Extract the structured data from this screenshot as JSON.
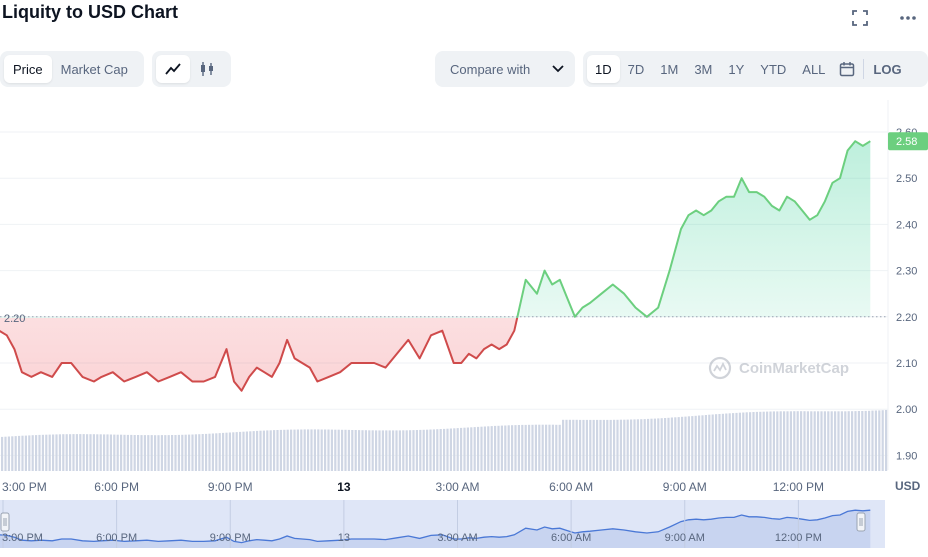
{
  "header": {
    "title": "Liquity to USD Chart"
  },
  "toolbar": {
    "view_tabs": [
      "Price",
      "Market Cap"
    ],
    "active_view": "Price",
    "chart_type_icons": [
      "line-chart-icon",
      "candlestick-icon"
    ],
    "compare_label": "Compare with",
    "ranges": [
      "1D",
      "7D",
      "1M",
      "3M",
      "1Y",
      "YTD",
      "ALL"
    ],
    "active_range": "1D",
    "log_label": "LOG"
  },
  "chart_data": {
    "type": "line",
    "title": "",
    "xlabel": "",
    "ylabel": "USD",
    "ylim": [
      1.86,
      2.605
    ],
    "baseline_label": "2.20",
    "baseline": 2.2,
    "current_label": "2.58",
    "watermark": "CoinMarketCap",
    "y_ticks": [
      "1.90",
      "2.00",
      "2.10",
      "2.20",
      "2.30",
      "2.40",
      "2.50",
      "2.60"
    ],
    "x_ticks": [
      "3:00 PM",
      "6:00 PM",
      "9:00 PM",
      "13",
      "3:00 AM",
      "6:00 AM",
      "9:00 AM",
      "12:00 PM"
    ],
    "x_tick_hours": [
      0,
      3,
      6,
      9,
      12,
      15,
      18,
      21
    ],
    "grid": true,
    "colors": {
      "up": "#16c784",
      "up_line": "#6ccf7f",
      "down": "#ea3943",
      "down_line": "#cf4b4b",
      "volume": "#cfd6e4",
      "navigator": "#dfe6f7"
    },
    "series": [
      {
        "x": [
          -0.1,
          0.1,
          0.3,
          0.5,
          0.75,
          1.0,
          1.3,
          1.55,
          1.8,
          2.1,
          2.4,
          2.6,
          2.9,
          3.2,
          3.5,
          3.8,
          4.1,
          4.4,
          4.7,
          5.0,
          5.3,
          5.6,
          5.9,
          6.1,
          6.3,
          6.5,
          6.7,
          6.9,
          7.1,
          7.3,
          7.5,
          7.7,
          7.9,
          8.1,
          8.3,
          8.6,
          8.9,
          9.2,
          9.5,
          9.8,
          10.1,
          10.4,
          10.7,
          11.0,
          11.3,
          11.6,
          11.9,
          12.1,
          12.3,
          12.5,
          12.7,
          12.9,
          13.1,
          13.3,
          13.5,
          13.8,
          14.1,
          14.3,
          14.5,
          14.7,
          14.9,
          15.1,
          15.3,
          15.5,
          15.8,
          16.1,
          16.4,
          16.7,
          17.0,
          17.3,
          17.6,
          17.9,
          18.1,
          18.3,
          18.5,
          18.7,
          18.9,
          19.1,
          19.3,
          19.5,
          19.7,
          19.9,
          20.1,
          20.3,
          20.5,
          20.7,
          20.9,
          21.1,
          21.3,
          21.5,
          21.7,
          21.9,
          22.1,
          22.3,
          22.5,
          22.7,
          22.9
        ],
        "y": [
          2.17,
          2.16,
          2.13,
          2.08,
          2.07,
          2.08,
          2.07,
          2.1,
          2.1,
          2.07,
          2.06,
          2.07,
          2.08,
          2.06,
          2.07,
          2.08,
          2.06,
          2.07,
          2.08,
          2.06,
          2.06,
          2.07,
          2.13,
          2.06,
          2.04,
          2.07,
          2.09,
          2.08,
          2.07,
          2.1,
          2.15,
          2.11,
          2.1,
          2.09,
          2.06,
          2.07,
          2.08,
          2.1,
          2.1,
          2.1,
          2.09,
          2.12,
          2.15,
          2.11,
          2.16,
          2.17,
          2.1,
          2.1,
          2.12,
          2.11,
          2.13,
          2.14,
          2.13,
          2.14,
          2.17,
          2.28,
          2.25,
          2.3,
          2.27,
          2.28,
          2.24,
          2.2,
          2.22,
          2.23,
          2.25,
          2.27,
          2.25,
          2.22,
          2.2,
          2.22,
          2.3,
          2.39,
          2.42,
          2.43,
          2.42,
          2.43,
          2.45,
          2.46,
          2.46,
          2.5,
          2.47,
          2.47,
          2.46,
          2.44,
          2.43,
          2.46,
          2.45,
          2.43,
          2.41,
          2.42,
          2.45,
          2.49,
          2.5,
          2.56,
          2.58,
          2.57,
          2.58
        ]
      }
    ]
  }
}
